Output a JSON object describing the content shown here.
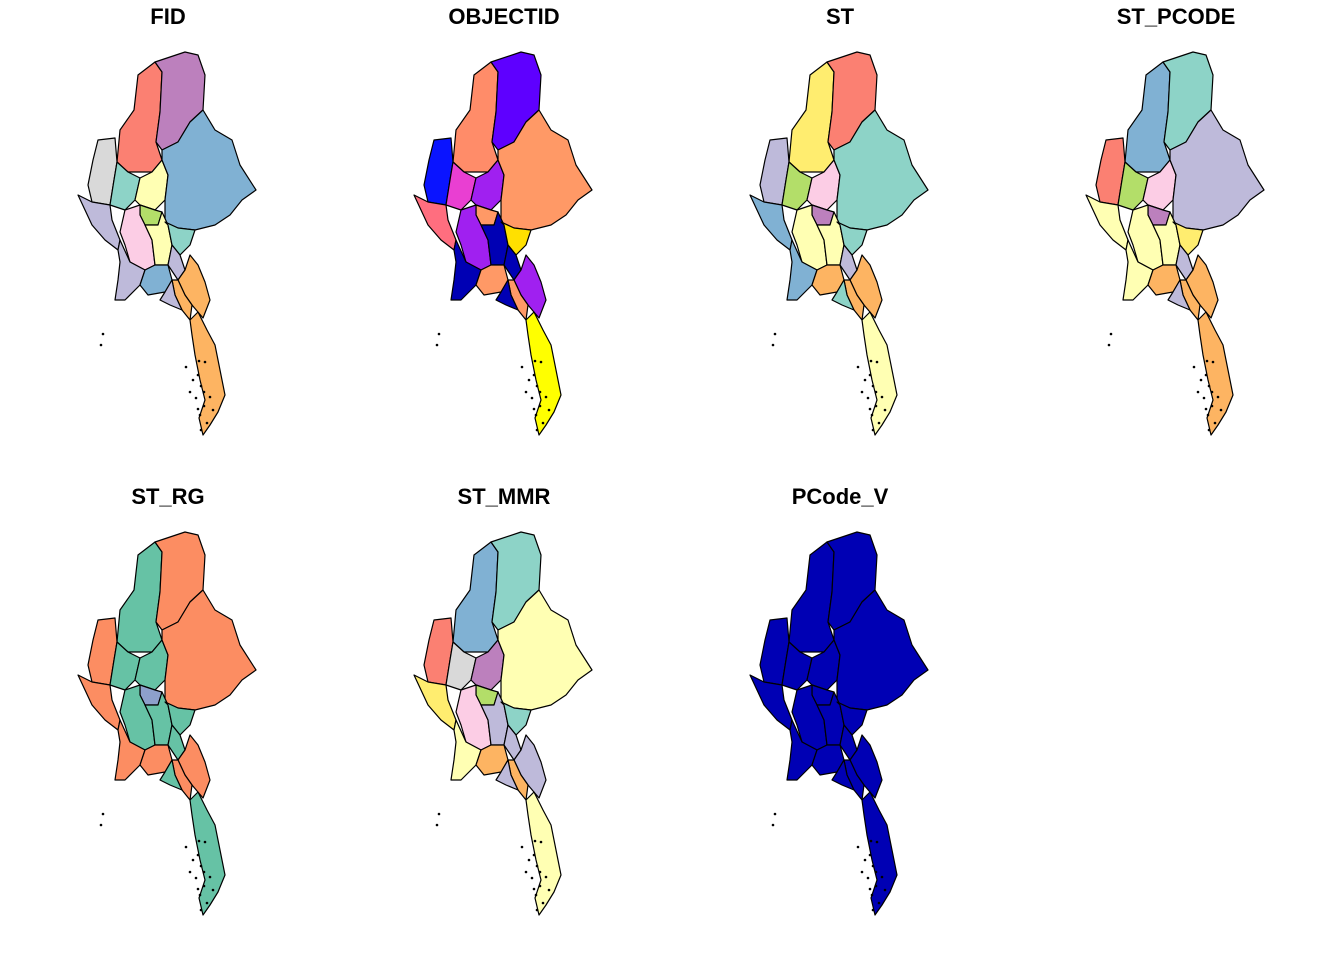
{
  "figure": {
    "panels": [
      {
        "title": "FID",
        "colors": [
          "#FB8072",
          "#BC80BD",
          "#D9D9D9",
          "#8DD3C7",
          "#FFFFB3",
          "#80B1D3",
          "#B3DE69",
          "#BEBADA",
          "#FCCDE5",
          "#FFFFB3",
          "#8DD3C7",
          "#BEBADA",
          "#FDB462",
          "#FDB462",
          "#BEBADA",
          "#80B1D3",
          "#FDB462",
          "#BEBADA"
        ]
      },
      {
        "title": "OBJECTID",
        "colors": [
          "#FF8C69",
          "#5E00FF",
          "#0A14FF",
          "#E93FD2",
          "#A020F0",
          "#FF9966",
          "#FF9966",
          "#FF6E7F",
          "#A020F0",
          "#0000B4",
          "#FFE000",
          "#0000B4",
          "#A020F0",
          "#FFFF00",
          "#0000B4",
          "#FF9966",
          "#FF9966",
          "#0000B4"
        ]
      },
      {
        "title": "ST",
        "colors": [
          "#FFED6F",
          "#FB8072",
          "#BEBADA",
          "#B3DE69",
          "#FCCDE5",
          "#8DD3C7",
          "#BC80BD",
          "#80B1D3",
          "#FFFFB3",
          "#FFFFB3",
          "#8DD3C7",
          "#BEBADA",
          "#FDB462",
          "#FFFFB3",
          "#80B1D3",
          "#FDB462",
          "#FDB462",
          "#8DD3C7"
        ]
      },
      {
        "title": "ST_PCODE",
        "colors": [
          "#80B1D3",
          "#8DD3C7",
          "#FB8072",
          "#B3DE69",
          "#FCCDE5",
          "#BEBADA",
          "#BC80BD",
          "#FFFFB3",
          "#FFFFB3",
          "#FFFFB3",
          "#FFED6F",
          "#BEBADA",
          "#FDB462",
          "#FDB462",
          "#FFFFB3",
          "#FDB462",
          "#FDB462",
          "#BEBADA"
        ]
      },
      {
        "title": "ST_RG",
        "colors": [
          "#66C2A5",
          "#FC8D62",
          "#FC8D62",
          "#66C2A5",
          "#66C2A5",
          "#FC8D62",
          "#8DA0CB",
          "#FC8D62",
          "#66C2A5",
          "#66C2A5",
          "#66C2A5",
          "#66C2A5",
          "#FC8D62",
          "#66C2A5",
          "#FC8D62",
          "#FC8D62",
          "#FC8D62",
          "#66C2A5"
        ]
      },
      {
        "title": "ST_MMR",
        "colors": [
          "#80B1D3",
          "#8DD3C7",
          "#FB8072",
          "#D9D9D9",
          "#BC80BD",
          "#FFFFB3",
          "#B3DE69",
          "#FFED6F",
          "#FCCDE5",
          "#BEBADA",
          "#8DD3C7",
          "#BEBADA",
          "#BEBADA",
          "#FFFFB3",
          "#FFFFB3",
          "#FDB462",
          "#FDB462",
          "#BEBADA"
        ]
      },
      {
        "title": "PCode_V",
        "colors": [
          "#0000B4",
          "#0000B4",
          "#0000B4",
          "#0000B4",
          "#0000B4",
          "#0000B4",
          "#0000B4",
          "#0000B4",
          "#0000B4",
          "#0000B4",
          "#0000B4",
          "#0000B4",
          "#0000B4",
          "#0000B4",
          "#0000B4",
          "#0000B4",
          "#0000B4",
          "#0000B4"
        ]
      }
    ]
  }
}
